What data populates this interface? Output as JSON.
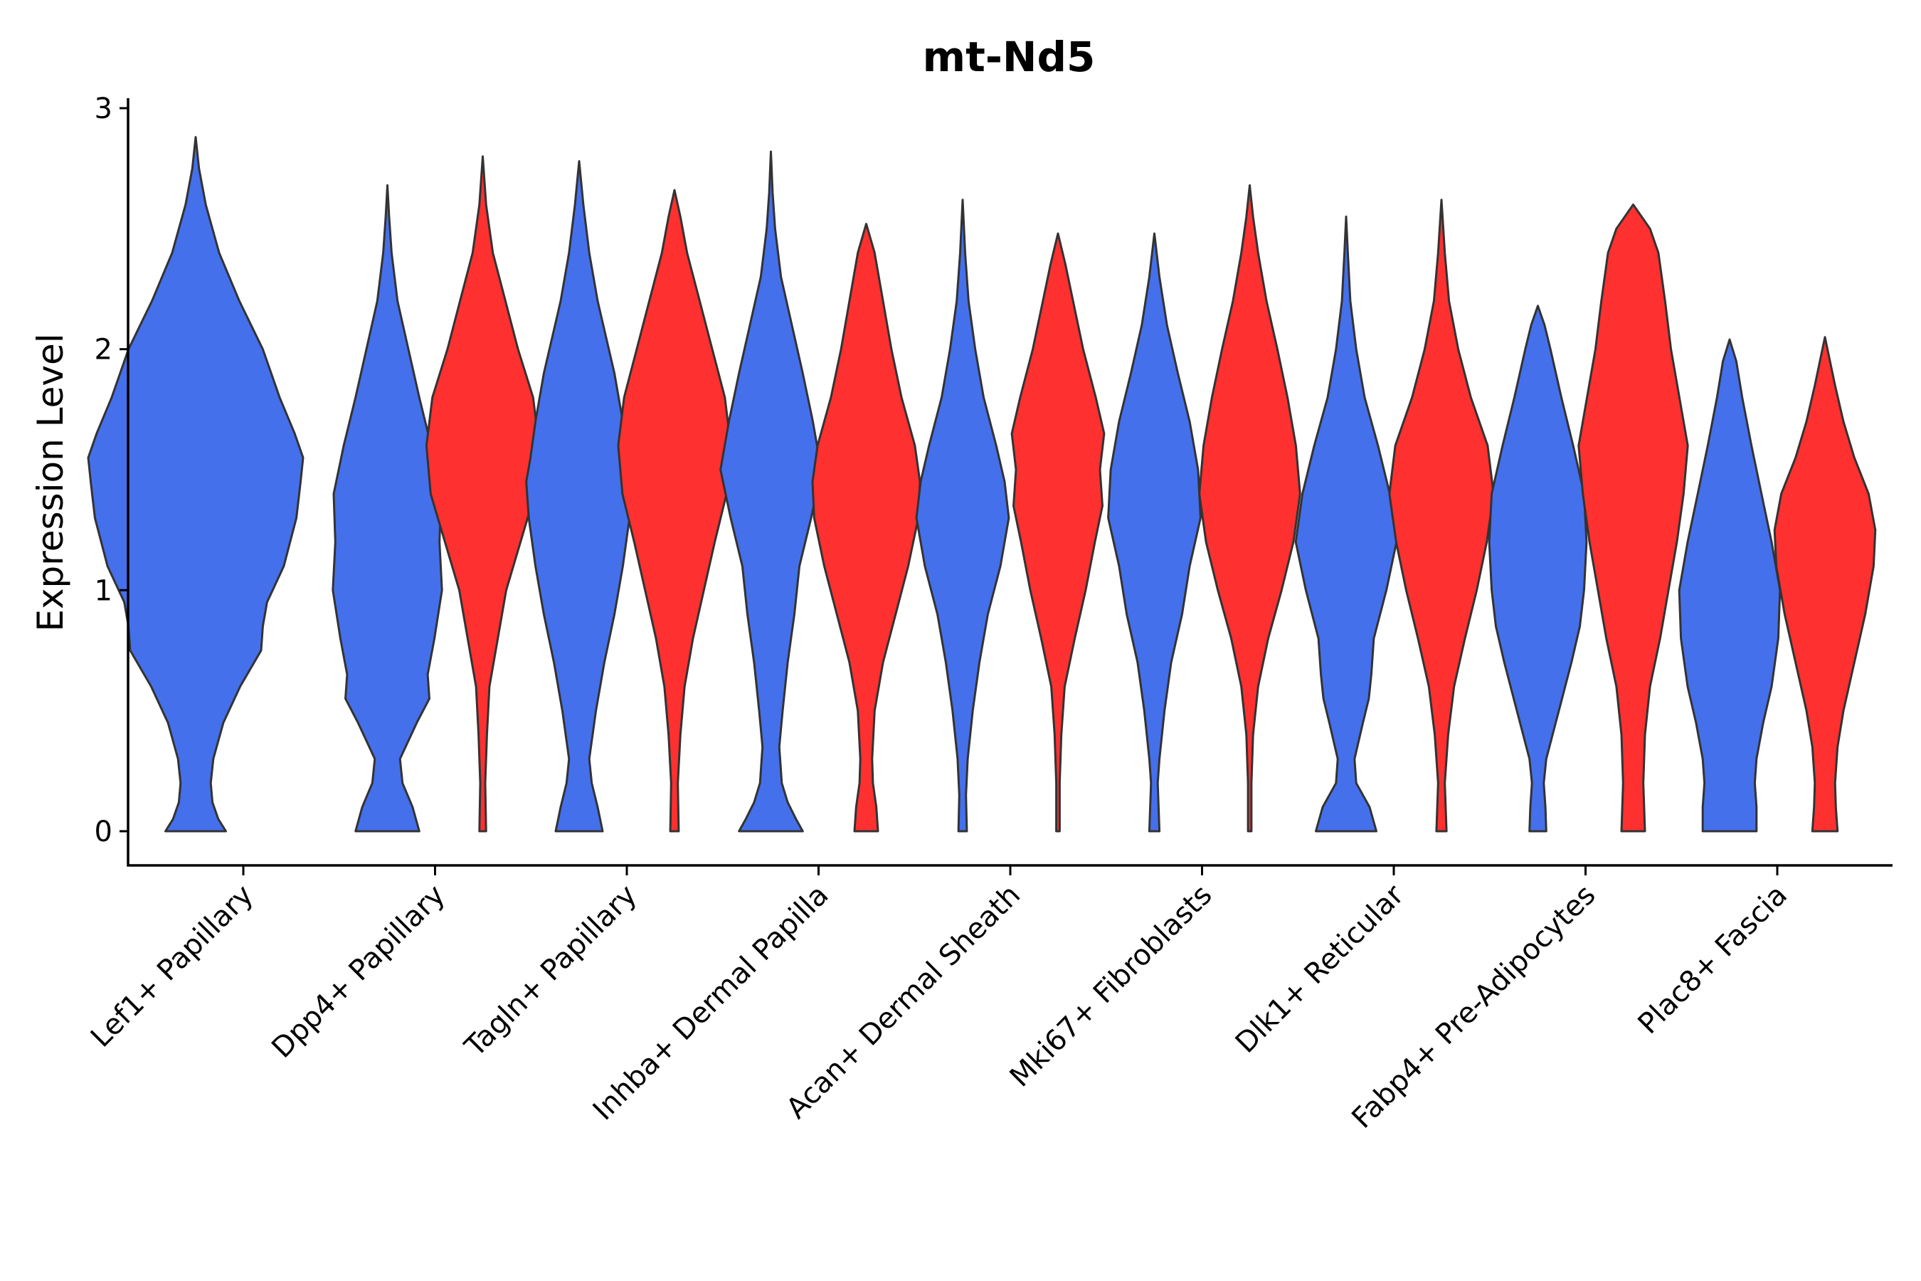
{
  "chart_data": {
    "type": "violin",
    "title": "mt-Nd5",
    "xlabel": "",
    "ylabel": "Expression Level",
    "ylim": [
      -0.15,
      3.0
    ],
    "yticks": [
      0,
      1,
      2,
      3
    ],
    "categories": [
      "Lef1+ Papillary",
      "Dpp4+ Papillary",
      "Tagln+ Papillary",
      "Inhba+ Dermal Papilla",
      "Acan+ Dermal Sheath",
      "Mki67+ Fibroblasts",
      "Dlk1+ Reticular",
      "Fabp4+ Pre-Adipocytes",
      "Plac8+ Fascia"
    ],
    "colors": {
      "group_a": "#4570EC",
      "group_b": "#FF3030",
      "outline": "#333333"
    },
    "groups": [
      "group_a",
      "group_b"
    ],
    "violins": [
      {
        "category": "Lef1+ Papillary",
        "group": "group_a",
        "ymax": 2.88,
        "profile": [
          [
            0,
            0.36
          ],
          [
            0.05,
            0.27
          ],
          [
            0.12,
            0.2
          ],
          [
            0.2,
            0.18
          ],
          [
            0.3,
            0.21
          ],
          [
            0.45,
            0.33
          ],
          [
            0.6,
            0.53
          ],
          [
            0.75,
            0.78
          ],
          [
            0.85,
            0.8
          ],
          [
            0.95,
            0.85
          ],
          [
            1.1,
            1.05
          ],
          [
            1.3,
            1.2
          ],
          [
            1.45,
            1.25
          ],
          [
            1.55,
            1.28
          ],
          [
            1.65,
            1.18
          ],
          [
            1.8,
            1.0
          ],
          [
            2.0,
            0.8
          ],
          [
            2.2,
            0.52
          ],
          [
            2.4,
            0.28
          ],
          [
            2.6,
            0.12
          ],
          [
            2.75,
            0.04
          ],
          [
            2.88,
            0
          ]
        ]
      },
      {
        "category": "Dpp4+ Papillary",
        "group": "group_a",
        "ymax": 2.68,
        "profile": [
          [
            0,
            0.38
          ],
          [
            0.1,
            0.3
          ],
          [
            0.2,
            0.18
          ],
          [
            0.3,
            0.15
          ],
          [
            0.45,
            0.35
          ],
          [
            0.55,
            0.5
          ],
          [
            0.65,
            0.48
          ],
          [
            0.8,
            0.56
          ],
          [
            1.0,
            0.65
          ],
          [
            1.2,
            0.62
          ],
          [
            1.4,
            0.64
          ],
          [
            1.6,
            0.52
          ],
          [
            1.8,
            0.38
          ],
          [
            2.0,
            0.25
          ],
          [
            2.2,
            0.12
          ],
          [
            2.4,
            0.05
          ],
          [
            2.55,
            0.02
          ],
          [
            2.68,
            0
          ]
        ]
      },
      {
        "category": "Dpp4+ Papillary",
        "group": "group_b",
        "ymax": 2.8,
        "profile": [
          [
            0,
            0.04
          ],
          [
            0.2,
            0.03
          ],
          [
            0.4,
            0.05
          ],
          [
            0.6,
            0.08
          ],
          [
            0.8,
            0.18
          ],
          [
            1.0,
            0.28
          ],
          [
            1.2,
            0.45
          ],
          [
            1.4,
            0.62
          ],
          [
            1.6,
            0.67
          ],
          [
            1.8,
            0.6
          ],
          [
            2.0,
            0.42
          ],
          [
            2.2,
            0.27
          ],
          [
            2.4,
            0.12
          ],
          [
            2.6,
            0.04
          ],
          [
            2.8,
            0
          ]
        ]
      },
      {
        "category": "Tagln+ Papillary",
        "group": "group_a",
        "ymax": 2.78,
        "profile": [
          [
            0,
            0.28
          ],
          [
            0.1,
            0.22
          ],
          [
            0.2,
            0.15
          ],
          [
            0.3,
            0.12
          ],
          [
            0.5,
            0.2
          ],
          [
            0.7,
            0.3
          ],
          [
            0.9,
            0.42
          ],
          [
            1.1,
            0.52
          ],
          [
            1.3,
            0.6
          ],
          [
            1.45,
            0.63
          ],
          [
            1.55,
            0.58
          ],
          [
            1.7,
            0.52
          ],
          [
            1.9,
            0.42
          ],
          [
            2.05,
            0.32
          ],
          [
            2.2,
            0.22
          ],
          [
            2.4,
            0.12
          ],
          [
            2.6,
            0.05
          ],
          [
            2.78,
            0
          ]
        ]
      },
      {
        "category": "Tagln+ Papillary",
        "group": "group_b",
        "ymax": 2.66,
        "profile": [
          [
            0,
            0.05
          ],
          [
            0.2,
            0.04
          ],
          [
            0.4,
            0.07
          ],
          [
            0.6,
            0.12
          ],
          [
            0.8,
            0.22
          ],
          [
            1.0,
            0.35
          ],
          [
            1.2,
            0.48
          ],
          [
            1.4,
            0.62
          ],
          [
            1.6,
            0.67
          ],
          [
            1.8,
            0.6
          ],
          [
            2.0,
            0.45
          ],
          [
            2.2,
            0.3
          ],
          [
            2.4,
            0.15
          ],
          [
            2.55,
            0.07
          ],
          [
            2.66,
            0
          ]
        ]
      },
      {
        "category": "Inhba+ Dermal Papilla",
        "group": "group_a",
        "ymax": 2.82,
        "profile": [
          [
            0,
            0.38
          ],
          [
            0.05,
            0.3
          ],
          [
            0.12,
            0.2
          ],
          [
            0.2,
            0.13
          ],
          [
            0.35,
            0.1
          ],
          [
            0.5,
            0.14
          ],
          [
            0.7,
            0.2
          ],
          [
            0.9,
            0.28
          ],
          [
            1.1,
            0.34
          ],
          [
            1.3,
            0.48
          ],
          [
            1.5,
            0.6
          ],
          [
            1.7,
            0.5
          ],
          [
            1.9,
            0.38
          ],
          [
            2.1,
            0.25
          ],
          [
            2.3,
            0.12
          ],
          [
            2.5,
            0.05
          ],
          [
            2.65,
            0.02
          ],
          [
            2.82,
            0
          ]
        ]
      },
      {
        "category": "Inhba+ Dermal Papilla",
        "group": "group_b",
        "ymax": 2.52,
        "profile": [
          [
            0,
            0.14
          ],
          [
            0.1,
            0.12
          ],
          [
            0.2,
            0.08
          ],
          [
            0.3,
            0.07
          ],
          [
            0.5,
            0.1
          ],
          [
            0.7,
            0.2
          ],
          [
            0.9,
            0.35
          ],
          [
            1.1,
            0.5
          ],
          [
            1.3,
            0.62
          ],
          [
            1.45,
            0.64
          ],
          [
            1.6,
            0.58
          ],
          [
            1.8,
            0.42
          ],
          [
            2.0,
            0.3
          ],
          [
            2.2,
            0.2
          ],
          [
            2.4,
            0.1
          ],
          [
            2.52,
            0
          ]
        ]
      },
      {
        "category": "Acan+ Dermal Sheath",
        "group": "group_a",
        "ymax": 2.62,
        "profile": [
          [
            0,
            0.05
          ],
          [
            0.15,
            0.04
          ],
          [
            0.3,
            0.06
          ],
          [
            0.5,
            0.12
          ],
          [
            0.7,
            0.2
          ],
          [
            0.9,
            0.3
          ],
          [
            1.1,
            0.45
          ],
          [
            1.3,
            0.55
          ],
          [
            1.45,
            0.5
          ],
          [
            1.6,
            0.4
          ],
          [
            1.8,
            0.25
          ],
          [
            2.0,
            0.15
          ],
          [
            2.2,
            0.07
          ],
          [
            2.4,
            0.03
          ],
          [
            2.62,
            0
          ]
        ]
      },
      {
        "category": "Acan+ Dermal Sheath",
        "group": "group_b",
        "ymax": 2.48,
        "profile": [
          [
            0,
            0.02
          ],
          [
            0.2,
            0.02
          ],
          [
            0.4,
            0.04
          ],
          [
            0.6,
            0.08
          ],
          [
            0.8,
            0.2
          ],
          [
            1.0,
            0.33
          ],
          [
            1.2,
            0.44
          ],
          [
            1.35,
            0.53
          ],
          [
            1.5,
            0.5
          ],
          [
            1.65,
            0.55
          ],
          [
            1.8,
            0.45
          ],
          [
            2.0,
            0.3
          ],
          [
            2.2,
            0.18
          ],
          [
            2.35,
            0.09
          ],
          [
            2.48,
            0
          ]
        ]
      },
      {
        "category": "Mki67+ Fibroblasts",
        "group": "group_a",
        "ymax": 2.48,
        "profile": [
          [
            0,
            0.06
          ],
          [
            0.1,
            0.05
          ],
          [
            0.2,
            0.04
          ],
          [
            0.3,
            0.06
          ],
          [
            0.5,
            0.12
          ],
          [
            0.7,
            0.2
          ],
          [
            0.9,
            0.33
          ],
          [
            1.1,
            0.42
          ],
          [
            1.3,
            0.55
          ],
          [
            1.5,
            0.52
          ],
          [
            1.7,
            0.42
          ],
          [
            1.9,
            0.28
          ],
          [
            2.1,
            0.15
          ],
          [
            2.3,
            0.06
          ],
          [
            2.48,
            0
          ]
        ]
      },
      {
        "category": "Mki67+ Fibroblasts",
        "group": "group_b",
        "ymax": 2.68,
        "profile": [
          [
            0,
            0.02
          ],
          [
            0.2,
            0.02
          ],
          [
            0.4,
            0.04
          ],
          [
            0.6,
            0.1
          ],
          [
            0.8,
            0.22
          ],
          [
            1.0,
            0.38
          ],
          [
            1.2,
            0.52
          ],
          [
            1.4,
            0.6
          ],
          [
            1.6,
            0.55
          ],
          [
            1.8,
            0.45
          ],
          [
            2.0,
            0.33
          ],
          [
            2.2,
            0.2
          ],
          [
            2.4,
            0.1
          ],
          [
            2.55,
            0.04
          ],
          [
            2.68,
            0
          ]
        ]
      },
      {
        "category": "Dlk1+ Reticular",
        "group": "group_a",
        "ymax": 2.55,
        "profile": [
          [
            0,
            0.36
          ],
          [
            0.1,
            0.28
          ],
          [
            0.2,
            0.12
          ],
          [
            0.3,
            0.1
          ],
          [
            0.45,
            0.2
          ],
          [
            0.55,
            0.27
          ],
          [
            0.65,
            0.3
          ],
          [
            0.8,
            0.33
          ],
          [
            1.0,
            0.48
          ],
          [
            1.2,
            0.6
          ],
          [
            1.4,
            0.52
          ],
          [
            1.6,
            0.38
          ],
          [
            1.8,
            0.22
          ],
          [
            2.0,
            0.12
          ],
          [
            2.2,
            0.05
          ],
          [
            2.4,
            0.02
          ],
          [
            2.55,
            0
          ]
        ]
      },
      {
        "category": "Dlk1+ Reticular",
        "group": "group_b",
        "ymax": 2.62,
        "profile": [
          [
            0,
            0.06
          ],
          [
            0.1,
            0.05
          ],
          [
            0.2,
            0.04
          ],
          [
            0.4,
            0.08
          ],
          [
            0.6,
            0.15
          ],
          [
            0.8,
            0.28
          ],
          [
            1.0,
            0.42
          ],
          [
            1.2,
            0.54
          ],
          [
            1.4,
            0.62
          ],
          [
            1.6,
            0.55
          ],
          [
            1.8,
            0.35
          ],
          [
            2.0,
            0.2
          ],
          [
            2.2,
            0.09
          ],
          [
            2.4,
            0.04
          ],
          [
            2.62,
            0
          ]
        ]
      },
      {
        "category": "Fabp4+ Pre-Adipocytes",
        "group": "group_a",
        "ymax": 2.18,
        "profile": [
          [
            0,
            0.1
          ],
          [
            0.1,
            0.09
          ],
          [
            0.2,
            0.07
          ],
          [
            0.3,
            0.1
          ],
          [
            0.5,
            0.25
          ],
          [
            0.7,
            0.4
          ],
          [
            0.85,
            0.5
          ],
          [
            1.0,
            0.55
          ],
          [
            1.2,
            0.58
          ],
          [
            1.4,
            0.55
          ],
          [
            1.6,
            0.42
          ],
          [
            1.8,
            0.28
          ],
          [
            2.0,
            0.15
          ],
          [
            2.1,
            0.08
          ],
          [
            2.18,
            0
          ]
        ]
      },
      {
        "category": "Fabp4+ Pre-Adipocytes",
        "group": "group_b",
        "ymax": 2.6,
        "profile": [
          [
            0,
            0.14
          ],
          [
            0.2,
            0.12
          ],
          [
            0.4,
            0.14
          ],
          [
            0.6,
            0.2
          ],
          [
            0.8,
            0.32
          ],
          [
            1.0,
            0.42
          ],
          [
            1.2,
            0.52
          ],
          [
            1.4,
            0.6
          ],
          [
            1.6,
            0.65
          ],
          [
            1.8,
            0.55
          ],
          [
            2.0,
            0.45
          ],
          [
            2.2,
            0.38
          ],
          [
            2.4,
            0.3
          ],
          [
            2.5,
            0.2
          ],
          [
            2.6,
            0
          ]
        ]
      },
      {
        "category": "Plac8+ Fascia",
        "group": "group_a",
        "ymax": 2.04,
        "profile": [
          [
            0,
            0.32
          ],
          [
            0.1,
            0.32
          ],
          [
            0.2,
            0.3
          ],
          [
            0.3,
            0.32
          ],
          [
            0.45,
            0.4
          ],
          [
            0.6,
            0.5
          ],
          [
            0.8,
            0.58
          ],
          [
            1.0,
            0.6
          ],
          [
            1.2,
            0.5
          ],
          [
            1.4,
            0.38
          ],
          [
            1.6,
            0.26
          ],
          [
            1.8,
            0.15
          ],
          [
            1.95,
            0.08
          ],
          [
            2.04,
            0
          ]
        ]
      },
      {
        "category": "Plac8+ Fascia",
        "group": "group_b",
        "ymax": 2.05,
        "profile": [
          [
            0,
            0.15
          ],
          [
            0.1,
            0.13
          ],
          [
            0.2,
            0.12
          ],
          [
            0.35,
            0.15
          ],
          [
            0.5,
            0.22
          ],
          [
            0.7,
            0.35
          ],
          [
            0.9,
            0.48
          ],
          [
            1.1,
            0.58
          ],
          [
            1.25,
            0.6
          ],
          [
            1.4,
            0.52
          ],
          [
            1.55,
            0.35
          ],
          [
            1.7,
            0.22
          ],
          [
            1.85,
            0.12
          ],
          [
            1.95,
            0.06
          ],
          [
            2.05,
            0
          ]
        ]
      }
    ]
  }
}
